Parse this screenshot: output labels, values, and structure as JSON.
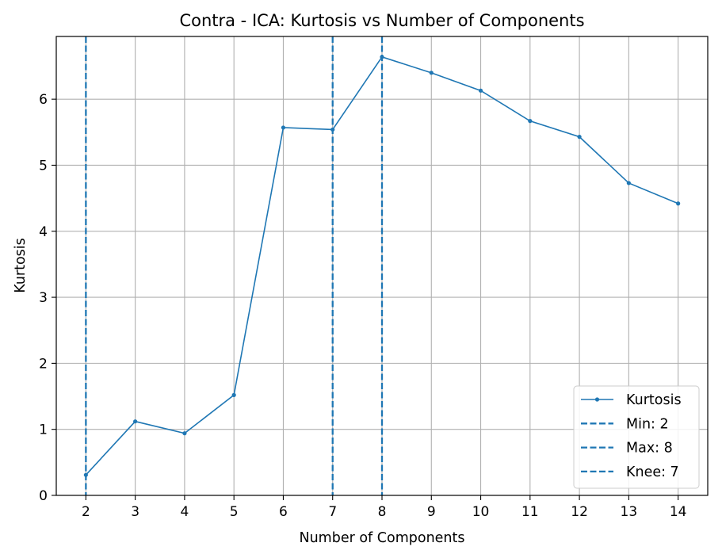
{
  "chart_data": {
    "type": "line",
    "title": "Contra - ICA: Kurtosis vs Number of Components",
    "xlabel": "Number of Components",
    "ylabel": "Kurtosis",
    "xlim": [
      1.4,
      14.6
    ],
    "ylim": [
      0,
      6.95
    ],
    "xticks": [
      2,
      3,
      4,
      5,
      6,
      7,
      8,
      9,
      10,
      11,
      12,
      13,
      14
    ],
    "yticks": [
      0,
      1,
      2,
      3,
      4,
      5,
      6
    ],
    "grid": true,
    "legend_position": "lower-right",
    "series": [
      {
        "name": "Kurtosis",
        "color": "#1f77b4",
        "x": [
          2,
          3,
          4,
          5,
          6,
          7,
          8,
          9,
          10,
          11,
          12,
          13,
          14
        ],
        "y": [
          0.31,
          1.12,
          0.94,
          1.52,
          5.57,
          5.54,
          6.64,
          6.4,
          6.13,
          5.67,
          5.43,
          4.73,
          4.42
        ]
      }
    ],
    "vlines": [
      {
        "name": "Min: 2",
        "x": 2,
        "color": "#1f77b4",
        "style": "dashed"
      },
      {
        "name": "Max: 8",
        "x": 8,
        "color": "#1f77b4",
        "style": "dashed"
      },
      {
        "name": "Knee: 7",
        "x": 7,
        "color": "#1f77b4",
        "style": "dashed"
      }
    ]
  }
}
